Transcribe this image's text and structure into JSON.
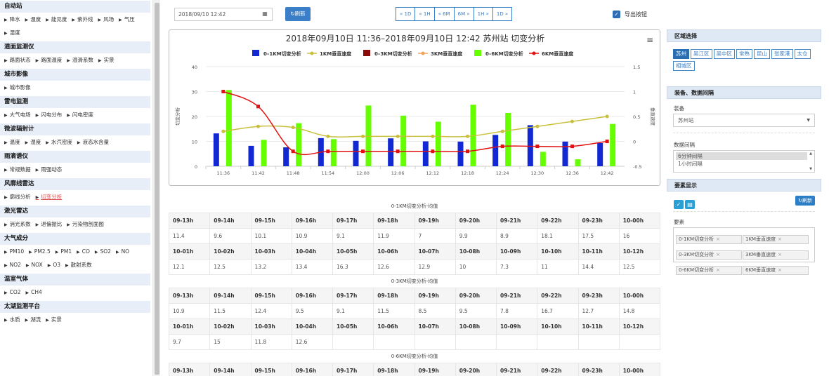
{
  "sidebar": [
    {
      "title": "自动站",
      "items": [
        "降水",
        "温度",
        "能见度",
        "紫外线",
        "风场",
        "气压",
        "湿度"
      ]
    },
    {
      "title": "道面监测仪",
      "items": [
        "路面状态",
        "路面温度",
        "湿滑系数",
        "实景"
      ]
    },
    {
      "title": "城市影像",
      "items": [
        "城市影像"
      ]
    },
    {
      "title": "雷电监测",
      "items": [
        "大气电场",
        "闪电分布",
        "闪电密度"
      ]
    },
    {
      "title": "微波辐射计",
      "items": [
        "温度",
        "湿度",
        "水汽密度",
        "液态水含量"
      ]
    },
    {
      "title": "雨滴谱仪",
      "items": [
        "常规数据",
        "雨强动态"
      ]
    },
    {
      "title": "风廓线雷达",
      "items": [
        "廓线分析",
        "切变分析"
      ],
      "active": "切变分析"
    },
    {
      "title": "激光雷达",
      "items": [
        "消光系数",
        "退偏振比",
        "污染物剖面图"
      ]
    },
    {
      "title": "大气成分",
      "items": [
        "PM10",
        "PM2.5",
        "PM1",
        "CO",
        "SO2",
        "NO",
        "NO2",
        "NOX",
        "O3",
        "散射系数"
      ]
    },
    {
      "title": "温室气体",
      "items": [
        "CO2",
        "CH4"
      ]
    },
    {
      "title": "太湖监测平台",
      "items": [
        "水质",
        "湖流",
        "实景"
      ]
    }
  ],
  "toolbar": {
    "date": "2018/09/10 12:42",
    "refresh_label": "刷新",
    "nav": [
      "« 1D",
      "« 1H",
      "« 6M",
      "6M »",
      "1H »",
      "1D »"
    ],
    "export_label": "导出按钮"
  },
  "chart_data": {
    "type": "bar",
    "title": "2018年09月10日 11:36–2018年09月10日 12:42 苏州站 切变分析",
    "ylabel": "切变分析",
    "y2label": "垂直速度",
    "ylim": [
      0,
      40
    ],
    "y2lim": [
      -0.5,
      1.5
    ],
    "yticks": [
      0,
      10,
      20,
      30,
      40
    ],
    "y2ticks": [
      -0.5,
      0,
      0.5,
      1,
      1.5
    ],
    "categories": [
      "11:36",
      "11:42",
      "11:48",
      "11:54",
      "12:00",
      "12:06",
      "12:12",
      "12:18",
      "12:24",
      "12:30",
      "12:36",
      "12:42"
    ],
    "series": [
      {
        "name": "0–1KM切变分析",
        "kind": "bar",
        "color": "#1228d2",
        "values": [
          13.2,
          8.2,
          7.6,
          11.3,
          10.2,
          11.2,
          10,
          9.9,
          12.6,
          16.5,
          9.9,
          9.3
        ]
      },
      {
        "name": "1KM垂直速度",
        "kind": "line",
        "axis": "right",
        "color": "#c8c03c",
        "values": [
          0.2,
          0.3,
          0.28,
          0.1,
          0.1,
          0.1,
          0.1,
          0.1,
          0.2,
          0.3,
          0.4,
          0.5
        ]
      },
      {
        "name": "0–3KM切变分析",
        "kind": "bar",
        "color": "#8b0a0a",
        "values": [
          null,
          null,
          null,
          null,
          null,
          null,
          null,
          null,
          null,
          null,
          null,
          null
        ]
      },
      {
        "name": "3KM垂直速度",
        "kind": "line",
        "axis": "right",
        "color": "#f2a45a",
        "values": [
          null,
          null,
          null,
          null,
          null,
          null,
          null,
          null,
          null,
          null,
          null,
          null
        ]
      },
      {
        "name": "0–6KM切变分析",
        "kind": "bar",
        "color": "#66ff00",
        "values": [
          30.6,
          10.6,
          17.3,
          10.9,
          24.4,
          20.3,
          17.9,
          24.7,
          21.4,
          5.8,
          2.8,
          17
        ]
      },
      {
        "name": "6KM垂直速度",
        "kind": "line",
        "axis": "right",
        "color": "#e11111",
        "values": [
          1,
          0.7,
          -0.2,
          -0.2,
          -0.2,
          -0.2,
          -0.2,
          -0.2,
          -0.1,
          -0.1,
          -0.1,
          0
        ]
      }
    ]
  },
  "tables": [
    {
      "caption": "0-1KM切变分析-均值",
      "rows": [
        [
          "09-13h",
          "09-14h",
          "09-15h",
          "09-16h",
          "09-17h",
          "09-18h",
          "09-19h",
          "09-20h",
          "09-21h",
          "09-22h",
          "09-23h",
          "10-00h"
        ],
        [
          "11.4",
          "9.6",
          "10.1",
          "10.9",
          "9.1",
          "11.9",
          "7",
          "9.9",
          "8.9",
          "18.1",
          "17.5",
          "16"
        ],
        [
          "10-01h",
          "10-02h",
          "10-03h",
          "10-04h",
          "10-05h",
          "10-06h",
          "10-07h",
          "10-08h",
          "10-09h",
          "10-10h",
          "10-11h",
          "10-12h"
        ],
        [
          "12.1",
          "12.5",
          "13.2",
          "13.4",
          "16.3",
          "12.6",
          "12.9",
          "10",
          "7.3",
          "11",
          "14.4",
          "12.5"
        ]
      ]
    },
    {
      "caption": "0-3KM切变分析-均值",
      "rows": [
        [
          "09-13h",
          "09-14h",
          "09-15h",
          "09-16h",
          "09-17h",
          "09-18h",
          "09-19h",
          "09-20h",
          "09-21h",
          "09-22h",
          "09-23h",
          "10-00h"
        ],
        [
          "10.9",
          "11.5",
          "12.4",
          "9.5",
          "9.1",
          "11.5",
          "8.5",
          "9.5",
          "7.8",
          "16.7",
          "12.7",
          "14.8"
        ],
        [
          "10-01h",
          "10-02h",
          "10-03h",
          "10-04h",
          "10-05h",
          "10-06h",
          "10-07h",
          "10-08h",
          "10-09h",
          "10-10h",
          "10-11h",
          "10-12h"
        ],
        [
          "9.7",
          "15",
          "11.8",
          "12.6",
          "",
          "",
          "",
          "",
          "",
          "",
          "",
          ""
        ]
      ]
    },
    {
      "caption": "0-6KM切变分析-均值",
      "rows": [
        [
          "09-13h",
          "09-14h",
          "09-15h",
          "09-16h",
          "09-17h",
          "09-18h",
          "09-19h",
          "09-20h",
          "09-21h",
          "09-22h",
          "09-23h",
          "10-00h"
        ]
      ]
    }
  ],
  "right_panel": {
    "region_title": "区域选择",
    "regions": [
      "苏州",
      "吴江区",
      "吴中区",
      "常熟",
      "昆山",
      "张家港",
      "太仓",
      "相城区"
    ],
    "region_selected": "苏州",
    "device_title": "装备、数据间隔",
    "device_label": "装备",
    "device_value": "苏州站",
    "interval_label": "数据间隔",
    "intervals": [
      "6分钟间隔",
      "1小时间隔"
    ],
    "element_title": "要素显示",
    "refresh_label": "刷新",
    "elements_label": "要素",
    "elements": [
      "0-1KM切变分析",
      "1KM垂直速度",
      "0-3KM切变分析",
      "3KM垂直速度",
      "0-6KM切变分析",
      "6KM垂直速度"
    ]
  }
}
